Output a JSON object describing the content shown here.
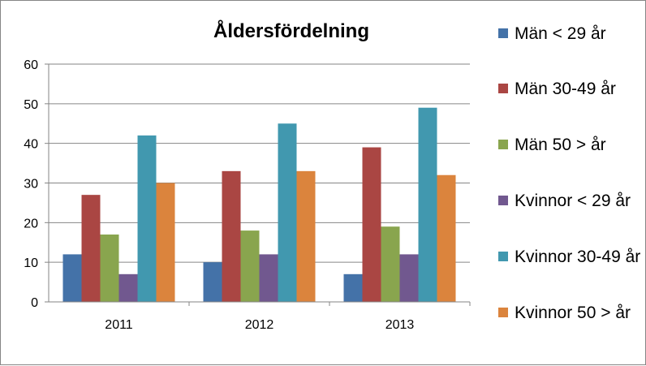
{
  "chart_data": {
    "type": "bar",
    "title": "Åldersfördelning",
    "xlabel": "",
    "ylabel": "",
    "categories": [
      "2011",
      "2012",
      "2013"
    ],
    "ylim": [
      0,
      60
    ],
    "yticks": [
      0,
      10,
      20,
      30,
      40,
      50,
      60
    ],
    "grid": true,
    "legend_position": "right",
    "series": [
      {
        "name": "Män < 29 år",
        "color": "#4472A8",
        "values": [
          12,
          10,
          7
        ]
      },
      {
        "name": "Män 30-49 år",
        "color": "#AA4643",
        "values": [
          27,
          33,
          39
        ]
      },
      {
        "name": "Män 50 > år",
        "color": "#89A54E",
        "values": [
          17,
          18,
          19
        ]
      },
      {
        "name": "Kvinnor < 29 år",
        "color": "#71588F",
        "values": [
          7,
          12,
          12
        ]
      },
      {
        "name": "Kvinnor 30-49 år",
        "color": "#4198AF",
        "values": [
          42,
          45,
          49
        ]
      },
      {
        "name": "Kvinnor 50 > år",
        "color": "#DB843D",
        "values": [
          30,
          33,
          32
        ]
      }
    ]
  }
}
